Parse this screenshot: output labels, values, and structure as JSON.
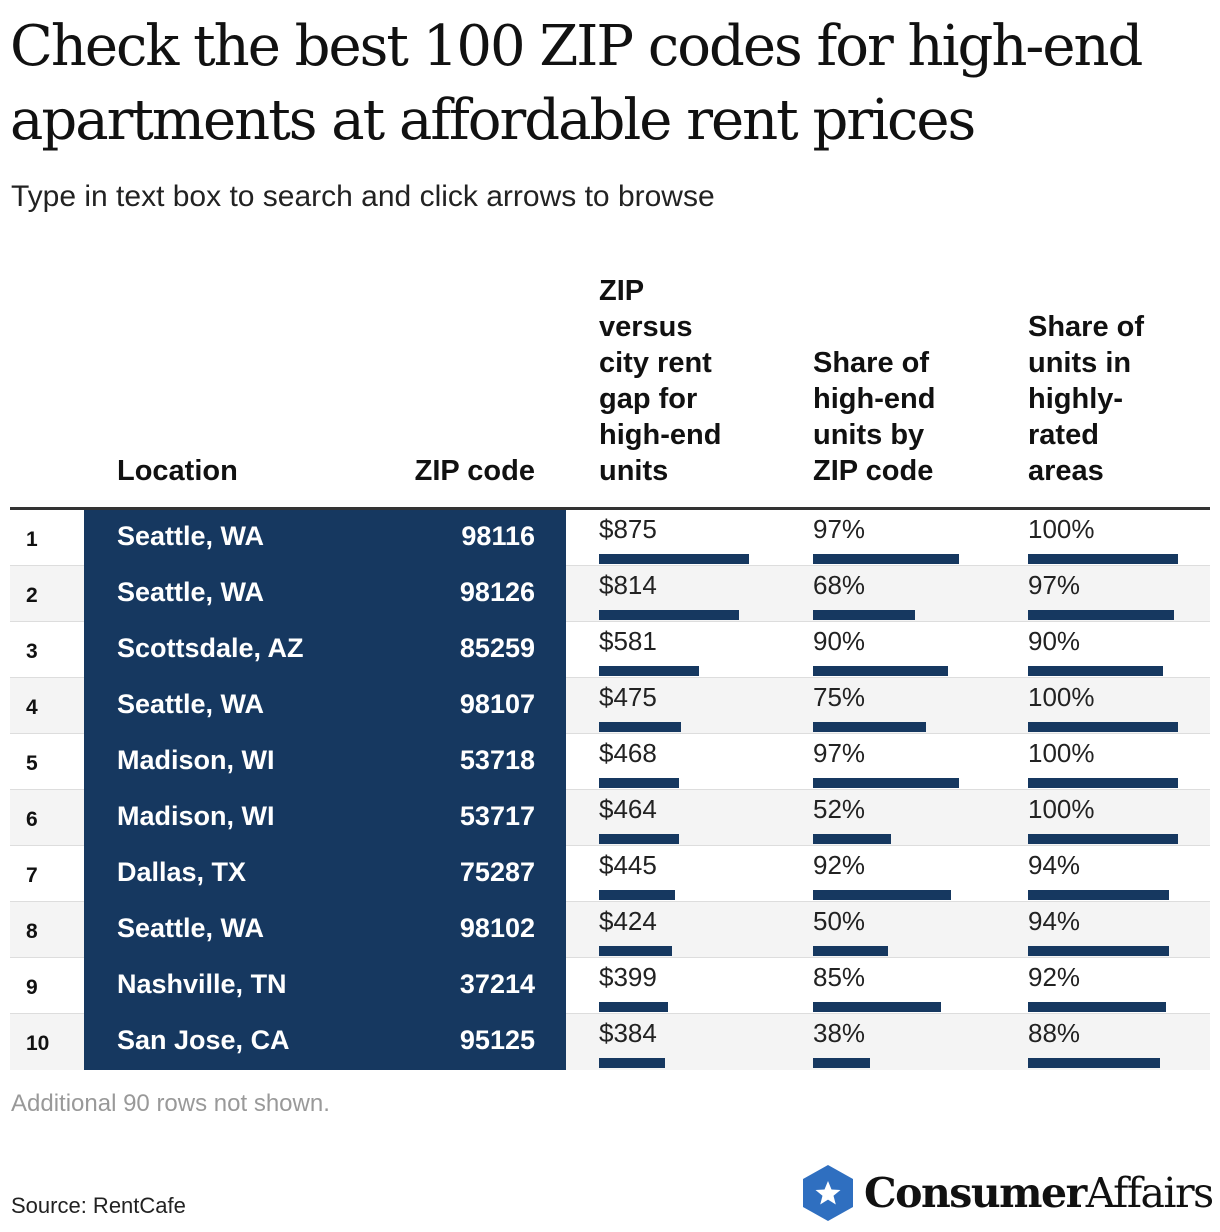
{
  "title": "Check the best 100 ZIP codes for high-end apartments at affordable rent prices",
  "subtitle": "Type in text box to search and click arrows to browse",
  "chart_data": {
    "type": "table",
    "columns": [
      "Location",
      "ZIP code",
      "ZIP versus city rent gap for high-end units",
      "Share of high-end units by ZIP code",
      "Share of units in highly-rated areas"
    ],
    "bar_max": {
      "gap": 875,
      "share": 100,
      "rated": 100
    },
    "rows": [
      {
        "rank": "1",
        "location": "Seattle, WA",
        "zip": "98116",
        "gap_label": "$875",
        "gap": 875,
        "share_label": "97%",
        "share": 97,
        "rated_label": "100%",
        "rated": 100
      },
      {
        "rank": "2",
        "location": "Seattle, WA",
        "zip": "98126",
        "gap_label": "$814",
        "gap": 814,
        "share_label": "68%",
        "share": 68,
        "rated_label": "97%",
        "rated": 97
      },
      {
        "rank": "3",
        "location": "Scottsdale, AZ",
        "zip": "85259",
        "gap_label": "$581",
        "gap": 581,
        "share_label": "90%",
        "share": 90,
        "rated_label": "90%",
        "rated": 90
      },
      {
        "rank": "4",
        "location": "Seattle, WA",
        "zip": "98107",
        "gap_label": "$475",
        "gap": 475,
        "share_label": "75%",
        "share": 75,
        "rated_label": "100%",
        "rated": 100
      },
      {
        "rank": "5",
        "location": "Madison, WI",
        "zip": "53718",
        "gap_label": "$468",
        "gap": 468,
        "share_label": "97%",
        "share": 97,
        "rated_label": "100%",
        "rated": 100
      },
      {
        "rank": "6",
        "location": "Madison, WI",
        "zip": "53717",
        "gap_label": "$464",
        "gap": 464,
        "share_label": "52%",
        "share": 52,
        "rated_label": "100%",
        "rated": 100
      },
      {
        "rank": "7",
        "location": "Dallas, TX",
        "zip": "75287",
        "gap_label": "$445",
        "gap": 445,
        "share_label": "92%",
        "share": 92,
        "rated_label": "94%",
        "rated": 94
      },
      {
        "rank": "8",
        "location": "Seattle, WA",
        "zip": "98102",
        "gap_label": "$424",
        "gap": 424,
        "share_label": "50%",
        "share": 50,
        "rated_label": "94%",
        "rated": 94
      },
      {
        "rank": "9",
        "location": "Nashville, TN",
        "zip": "37214",
        "gap_label": "$399",
        "gap": 399,
        "share_label": "85%",
        "share": 85,
        "rated_label": "92%",
        "rated": 92
      },
      {
        "rank": "10",
        "location": "San Jose, CA",
        "zip": "95125",
        "gap_label": "$384",
        "gap": 384,
        "share_label": "38%",
        "share": 38,
        "rated_label": "88%",
        "rated": 88
      }
    ]
  },
  "headers": {
    "location": "Location",
    "zip": "ZIP code",
    "gap": [
      "ZIP",
      "versus",
      "city rent",
      "gap for",
      "high-end",
      "units"
    ],
    "share": [
      "Share of",
      "high-end",
      "units by",
      "ZIP code"
    ],
    "rated": [
      "Share of",
      "units in",
      "highly-",
      "rated",
      "areas"
    ]
  },
  "footnote": "Additional 90 rows not shown.",
  "source": "Source: RentCafe",
  "brand": {
    "name_bold": "Consumer",
    "name_regular": "Affairs",
    "icon": "star-badge-icon"
  },
  "colors": {
    "navy": "#163860",
    "row_alt": "#f4f4f4",
    "text": "#111111",
    "muted": "#999999",
    "badge": "#2f6fc0"
  }
}
